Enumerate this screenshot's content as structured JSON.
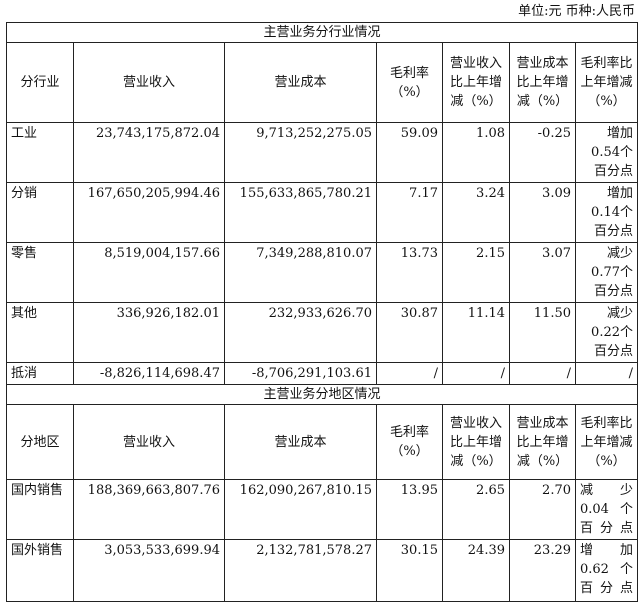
{
  "unit": "单位:元  币种:人民币",
  "industry": {
    "title": "主营业务分行业情况",
    "headers": [
      "分行业",
      "营业收入",
      "营业成本",
      "毛利率（%）",
      "营业收入比上年增减（%）",
      "营业成本比上年增减（%）",
      "毛利率比上年增减（%）"
    ],
    "rows": [
      {
        "name": "工业",
        "revenue": "23,743,175,872.04",
        "cost": "9,713,252,275.05",
        "margin": "59.09",
        "rev_chg": "1.08",
        "cost_chg": "-0.25",
        "margin_chg": "增加0.54个百分点"
      },
      {
        "name": "分销",
        "revenue": "167,650,205,994.46",
        "cost": "155,633,865,780.21",
        "margin": "7.17",
        "rev_chg": "3.24",
        "cost_chg": "3.09",
        "margin_chg": "增加0.14个百分点"
      },
      {
        "name": "零售",
        "revenue": "8,519,004,157.66",
        "cost": "7,349,288,810.07",
        "margin": "13.73",
        "rev_chg": "2.15",
        "cost_chg": "3.07",
        "margin_chg": "减少0.77个百分点"
      },
      {
        "name": "其他",
        "revenue": "336,926,182.01",
        "cost": "232,933,626.70",
        "margin": "30.87",
        "rev_chg": "11.14",
        "cost_chg": "11.50",
        "margin_chg": "减少0.22个百分点"
      },
      {
        "name": "抵消",
        "revenue": "-8,826,114,698.47",
        "cost": "-8,706,291,103.61",
        "margin": "/",
        "rev_chg": "/",
        "cost_chg": "/",
        "margin_chg": "/"
      }
    ]
  },
  "region": {
    "title": "主营业务分地区情况",
    "headers": [
      "分地区",
      "营业收入",
      "营业成本",
      "毛利率（%）",
      "营业收入比上年增减（%）",
      "营业成本比上年增减（%）",
      "毛利率比上年增减（%）"
    ],
    "rows": [
      {
        "name": "国内销售",
        "revenue": "188,369,663,807.76",
        "cost": "162,090,267,810.15",
        "margin": "13.95",
        "rev_chg": "2.65",
        "cost_chg": "2.70",
        "margin_chg": "减少0.04个百分点"
      },
      {
        "name": "国外销售",
        "revenue": "3,053,533,699.94",
        "cost": "2,132,781,578.27",
        "margin": "30.15",
        "rev_chg": "24.39",
        "cost_chg": "23.29",
        "margin_chg": "增加0.62个百分点"
      }
    ]
  }
}
